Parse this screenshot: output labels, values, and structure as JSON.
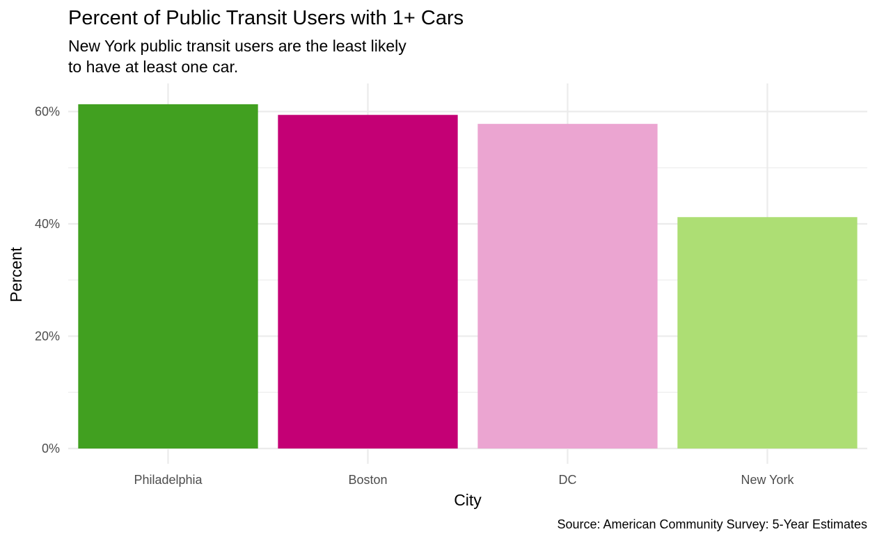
{
  "chart_data": {
    "type": "bar",
    "title": "Percent of Public Transit Users with 1+ Cars",
    "subtitle": [
      "New York public transit users are the least likely",
      "to have at least one car."
    ],
    "xlabel": "City",
    "ylabel": "Percent",
    "caption": "Source: American Community Survey: 5-Year Estimates",
    "categories": [
      "Philadelphia",
      "Boston",
      "DC",
      "New York"
    ],
    "values": [
      61.3,
      59.4,
      57.8,
      41.2
    ],
    "colors": [
      "#41A020",
      "#C40075",
      "#EBA5D1",
      "#ADDE74"
    ],
    "ylim": [
      0,
      65
    ],
    "y_ticks": [
      0,
      20,
      40,
      60
    ],
    "y_tick_labels": [
      "0%",
      "20%",
      "40%",
      "60%"
    ],
    "grid": true,
    "gridline_color": "#ebebeb",
    "legend": "none"
  }
}
